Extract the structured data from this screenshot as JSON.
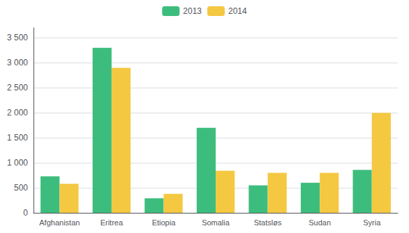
{
  "chart_data": {
    "type": "bar",
    "categories": [
      "Afghanistan",
      "Eritrea",
      "Etiopia",
      "Somalia",
      "Statsløs",
      "Sudan",
      "Syria"
    ],
    "series": [
      {
        "name": "2013",
        "color": "#3DBD7D",
        "values": [
          730,
          3300,
          290,
          1700,
          550,
          600,
          860
        ]
      },
      {
        "name": "2014",
        "color": "#F5C842",
        "values": [
          580,
          2900,
          380,
          840,
          800,
          800,
          2000
        ]
      }
    ],
    "ylim": [
      0,
      3700
    ],
    "yticks": [
      0,
      500,
      {
        "value": 1000,
        "label": "1 000"
      },
      {
        "value": 1500,
        "label": "1 500"
      },
      {
        "value": 2000,
        "label": "2 000"
      },
      {
        "value": 2500,
        "label": "2 500"
      },
      {
        "value": 3000,
        "label": "3 000"
      },
      {
        "value": 3500,
        "label": "3 500"
      }
    ],
    "grid": true,
    "legend": "top"
  }
}
